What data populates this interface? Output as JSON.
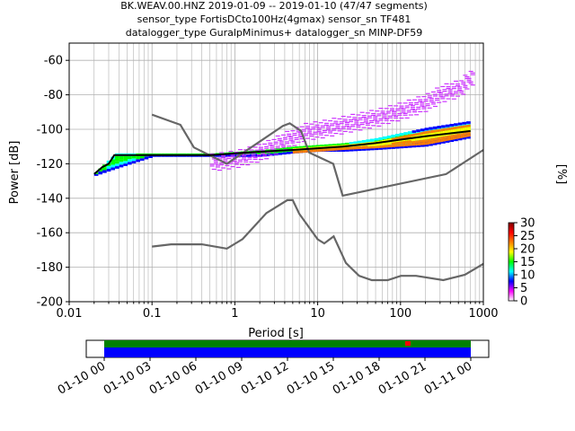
{
  "title_lines": [
    "BK.WEAV.00.HNZ   2019-01-09 -- 2019-01-10  (47/47 segments)",
    "sensor_type FortisDCto100Hz(4gmax) sensor_sn TF481",
    "datalogger_type GuralpMinimus+ datalogger_sn MINP-DF59"
  ],
  "chart_data": {
    "type": "heatmap",
    "title": "BK.WEAV.00.HNZ   2019-01-09 -- 2019-01-10  (47/47 segments)",
    "xlabel": "Period [s]",
    "ylabel": "Power [dB]",
    "xscale": "log",
    "xlim": [
      0.01,
      1000
    ],
    "ylim": [
      -200,
      -50
    ],
    "xticks": [
      "0.01",
      "0.1",
      "1",
      "10",
      "100",
      "1000"
    ],
    "yticks": [
      "-200",
      "-180",
      "-160",
      "-140",
      "-120",
      "-100",
      "-80",
      "-60"
    ],
    "grid": true,
    "colorbar": {
      "label": "[%]",
      "range": [
        0,
        30
      ],
      "ticks": [
        "0",
        "5",
        "10",
        "15",
        "20",
        "25",
        "30"
      ],
      "colors": [
        "#ffffff",
        "#ff00ff",
        "#0000ff",
        "#00ffff",
        "#00ff00",
        "#ffff00",
        "#ff8000",
        "#ff0000",
        "#800000"
      ]
    },
    "mode_curve": {
      "name": "mode",
      "color": "#000000",
      "x": [
        0.02,
        0.025,
        0.03,
        0.035,
        0.1,
        0.5,
        1,
        2,
        5,
        10,
        20,
        50,
        100,
        200,
        700
      ],
      "y": [
        -126,
        -122,
        -120,
        -115,
        -115,
        -115,
        -114,
        -113,
        -112,
        -111,
        -110,
        -108,
        -106,
        -104,
        -101
      ]
    },
    "density_bands": [
      {
        "x": [
          0.02,
          0.035,
          0.1,
          0.5,
          1,
          2,
          5,
          10,
          20,
          50,
          100,
          200,
          700
        ],
        "low": [
          -127,
          -123,
          -116,
          -116,
          -116,
          -116,
          -114,
          -113,
          -113,
          -112,
          -111,
          -110,
          -105
        ],
        "high": [
          -125,
          -114,
          -114,
          -114,
          -113,
          -112,
          -110,
          -109,
          -108,
          -105,
          -102,
          -99,
          -95
        ],
        "color": "#00e070"
      },
      {
        "x": [
          5,
          10,
          20,
          50,
          100,
          200,
          700
        ],
        "low": [
          -114,
          -113,
          -112,
          -111,
          -110,
          -109,
          -104
        ],
        "high": [
          -111,
          -110,
          -109,
          -107,
          -104,
          -101,
          -97
        ],
        "color": "#ffff00"
      }
    ],
    "max_scatter": {
      "color": "#cc33ff",
      "x": [
        0.5,
        1,
        2,
        4,
        7,
        10,
        20,
        50,
        100,
        200,
        300,
        500,
        700
      ],
      "y": [
        -114,
        -112,
        -108,
        -101,
        -96,
        -95,
        -92,
        -88,
        -84,
        -79,
        -74,
        -71,
        -64
      ]
    },
    "noise_models": [
      {
        "name": "NHNM",
        "color": "#666666",
        "x": [
          0.1,
          0.22,
          0.32,
          0.8,
          3.8,
          4.6,
          6.3,
          7.9,
          15.4,
          20,
          354.8,
          1000
        ],
        "y": [
          -91.5,
          -97.4,
          -110.5,
          -120,
          -98,
          -96.5,
          -101,
          -113.5,
          -120,
          -138.5,
          -126,
          -112
        ]
      },
      {
        "name": "NLNM",
        "color": "#666666",
        "x": [
          0.1,
          0.17,
          0.4,
          0.8,
          1.24,
          2.4,
          4.3,
          5,
          6,
          10,
          12,
          15.6,
          21.9,
          31.6,
          45,
          70,
          101,
          154,
          328,
          600,
          1000
        ],
        "y": [
          -168,
          -166.7,
          -166.7,
          -169.2,
          -163.7,
          -148.6,
          -141.1,
          -141.1,
          -149,
          -163.8,
          -166.2,
          -162.1,
          -177.5,
          -185,
          -187.5,
          -187.5,
          -185,
          -185,
          -187.5,
          -184.4,
          -178
        ]
      }
    ]
  },
  "timeline": {
    "tick_labels": [
      "01-10 00",
      "01-10 03",
      "01-10 06",
      "01-10 09",
      "01-10 12",
      "01-10 15",
      "01-10 18",
      "01-10 21",
      "01-11 00"
    ],
    "data_color": "#0000ff",
    "coverage_color": "#008000",
    "gap_color": "#ff0000",
    "gap_time": "01-10 20"
  }
}
